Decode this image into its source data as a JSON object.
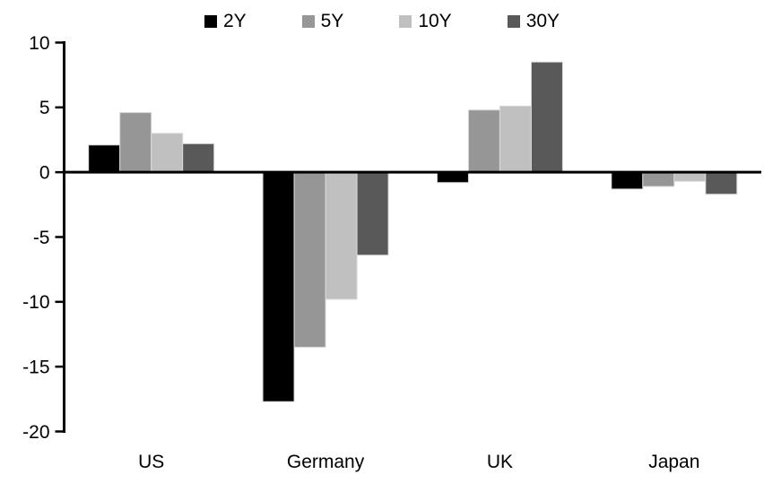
{
  "chart_data": {
    "type": "bar",
    "title": "",
    "xlabel": "",
    "ylabel": "",
    "categories": [
      "US",
      "Germany",
      "UK",
      "Japan"
    ],
    "series": [
      {
        "name": "2Y",
        "color": "#000000",
        "values": [
          2.1,
          -17.7,
          -0.8,
          -1.3
        ]
      },
      {
        "name": "5Y",
        "color": "#969696",
        "values": [
          4.6,
          -13.5,
          4.8,
          -1.1
        ]
      },
      {
        "name": "10Y",
        "color": "#c0c0c0",
        "values": [
          3.0,
          -9.8,
          5.1,
          -0.7
        ]
      },
      {
        "name": "30Y",
        "color": "#595959",
        "values": [
          2.2,
          -6.4,
          8.5,
          -1.7
        ]
      }
    ],
    "ylim": [
      -20,
      10
    ],
    "yticks": [
      10,
      5,
      0,
      -5,
      -10,
      -15,
      -20
    ],
    "grid": false,
    "legend_position": "top",
    "axis_color": "#000000",
    "bar_border_color": "#d9d9d9",
    "background_color": "#ffffff"
  }
}
